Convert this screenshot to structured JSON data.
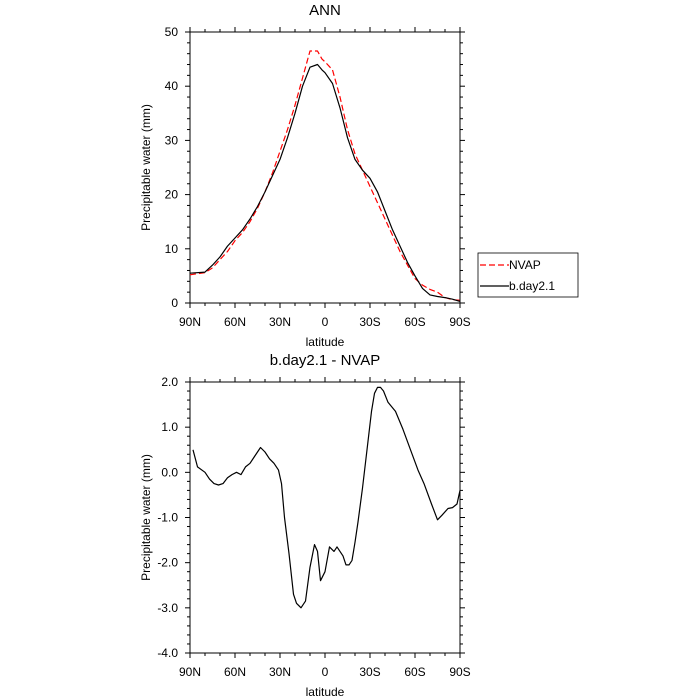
{
  "chart_data": [
    {
      "type": "line",
      "title": "ANN",
      "xlabel": "latitude",
      "ylabel": "Precipitable water (mm)",
      "xlim": [
        90,
        -90
      ],
      "ylim": [
        0,
        50
      ],
      "xticks": [
        90,
        60,
        30,
        0,
        -30,
        -60,
        -90
      ],
      "xtick_labels": [
        "90N",
        "60N",
        "30N",
        "0",
        "30S",
        "60S",
        "90S"
      ],
      "yticks": [
        0,
        10,
        20,
        30,
        40,
        50
      ],
      "ytick_labels": [
        "0",
        "10",
        "20",
        "30",
        "40",
        "50"
      ],
      "grid": false,
      "legend_position": "right",
      "series": [
        {
          "name": "NVAP",
          "color": "#ff0000",
          "dash": "dashed",
          "x": [
            90,
            80,
            75,
            70,
            65,
            60,
            55,
            50,
            45,
            40,
            35,
            30,
            25,
            20,
            15,
            10,
            5,
            2,
            0,
            -5,
            -10,
            -15,
            -20,
            -25,
            -30,
            -35,
            -40,
            -45,
            -50,
            -55,
            -60,
            -65,
            -70,
            -75,
            -80,
            -85,
            -90
          ],
          "y": [
            5.2,
            5.6,
            6.5,
            8.0,
            9.5,
            11.5,
            13.0,
            15.0,
            17.5,
            20.5,
            24.0,
            28.0,
            32.0,
            36.5,
            41.5,
            46.5,
            46.5,
            45.0,
            44.5,
            43.0,
            38.0,
            32.0,
            27.5,
            24.5,
            21.5,
            18.5,
            15.5,
            12.5,
            9.5,
            7.0,
            4.5,
            3.3,
            2.5,
            2.0,
            1.0,
            0.6,
            0.5
          ]
        },
        {
          "name": "b.day2.1",
          "color": "#000000",
          "dash": "solid",
          "x": [
            90,
            80,
            75,
            70,
            65,
            60,
            55,
            50,
            45,
            40,
            35,
            30,
            25,
            20,
            15,
            10,
            5,
            2,
            0,
            -5,
            -10,
            -15,
            -20,
            -25,
            -30,
            -35,
            -40,
            -45,
            -50,
            -55,
            -60,
            -65,
            -70,
            -75,
            -80,
            -85,
            -90
          ],
          "y": [
            5.5,
            5.7,
            7.0,
            8.5,
            10.5,
            12.0,
            13.5,
            15.5,
            17.8,
            20.5,
            23.5,
            26.5,
            30.5,
            35.0,
            40.0,
            43.5,
            44.0,
            43.0,
            42.5,
            40.5,
            36.0,
            30.5,
            26.5,
            24.5,
            23.0,
            20.5,
            17.0,
            13.5,
            10.5,
            7.5,
            5.0,
            2.7,
            1.5,
            1.2,
            1.0,
            0.7,
            0.3
          ]
        }
      ],
      "legend": [
        "NVAP",
        "b.day2.1"
      ]
    },
    {
      "type": "line",
      "title": "b.day2.1 - NVAP",
      "xlabel": "latitude",
      "ylabel": "Precipitable water (mm)",
      "xlim": [
        90,
        -90
      ],
      "ylim": [
        -4.0,
        2.0
      ],
      "xticks": [
        90,
        60,
        30,
        0,
        -30,
        -60,
        -90
      ],
      "xtick_labels": [
        "90N",
        "60N",
        "30N",
        "0",
        "30S",
        "60S",
        "90S"
      ],
      "yticks": [
        -4,
        -3,
        -2,
        -1,
        0,
        1,
        2
      ],
      "ytick_labels": [
        "-4.0",
        "-3.0",
        "-2.0",
        "-1.0",
        "0.0",
        "1.0",
        "2.0"
      ],
      "grid": false,
      "series": [
        {
          "color": "#000000",
          "dash": "solid",
          "x": [
            88,
            85,
            80,
            77,
            74,
            71,
            68,
            65,
            62,
            59,
            56,
            53,
            50,
            47,
            45,
            43,
            40,
            37,
            34,
            31,
            29,
            27,
            24,
            21,
            19,
            16,
            13,
            10,
            7,
            5,
            3,
            0,
            -3,
            -6,
            -8,
            -10,
            -12,
            -14,
            -16,
            -18,
            -20,
            -22,
            -25,
            -28,
            -31,
            -33,
            -35,
            -37,
            -39,
            -42,
            -47,
            -52,
            -57,
            -62,
            -66,
            -71,
            -75,
            -78,
            -82,
            -85,
            -88,
            -90
          ],
          "y": [
            0.5,
            0.12,
            0.0,
            -0.15,
            -0.25,
            -0.28,
            -0.25,
            -0.12,
            -0.05,
            0.0,
            -0.05,
            0.12,
            0.2,
            0.35,
            0.45,
            0.55,
            0.45,
            0.3,
            0.2,
            0.05,
            -0.25,
            -1.0,
            -1.8,
            -2.7,
            -2.9,
            -3.0,
            -2.85,
            -2.1,
            -1.6,
            -1.75,
            -2.4,
            -2.2,
            -1.65,
            -1.75,
            -1.65,
            -1.75,
            -1.85,
            -2.05,
            -2.05,
            -1.95,
            -1.55,
            -1.1,
            -0.35,
            0.5,
            1.35,
            1.75,
            1.88,
            1.88,
            1.8,
            1.55,
            1.35,
            0.95,
            0.5,
            0.05,
            -0.25,
            -0.7,
            -1.05,
            -0.95,
            -0.8,
            -0.78,
            -0.7,
            -0.4
          ]
        }
      ]
    }
  ]
}
